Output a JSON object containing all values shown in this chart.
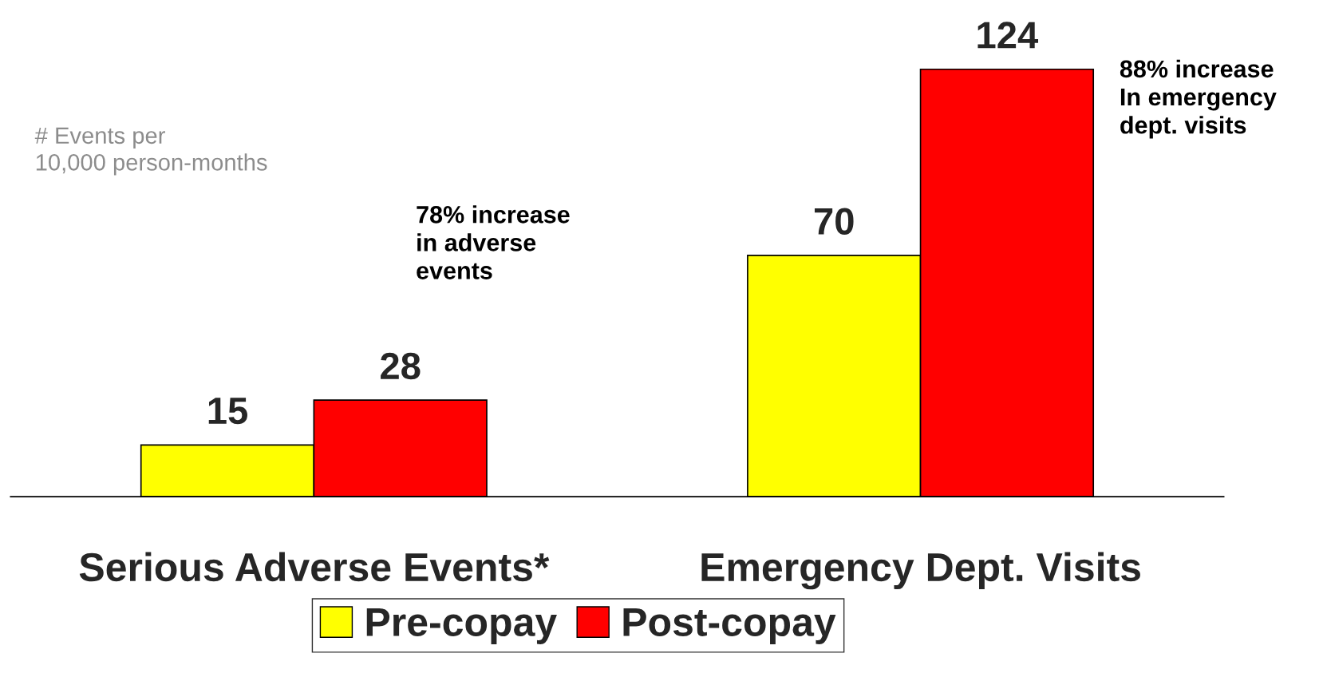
{
  "chart_data": {
    "type": "bar",
    "categories": [
      "Serious Adverse Events*",
      "Emergency Dept. Visits"
    ],
    "series": [
      {
        "name": "Pre-copay",
        "color": "#ffff00",
        "values": [
          15,
          70
        ]
      },
      {
        "name": "Post-copay",
        "color": "#ff0000",
        "values": [
          28,
          124
        ]
      }
    ],
    "data_labels": true,
    "legend": "bottom",
    "grid": false,
    "tick_labels": "x",
    "annotations": [
      "# Events per\n10,000 person-months",
      "78% increase\nin adverse\nevents",
      "88% increase\nIn emergency\ndept. visits"
    ]
  }
}
